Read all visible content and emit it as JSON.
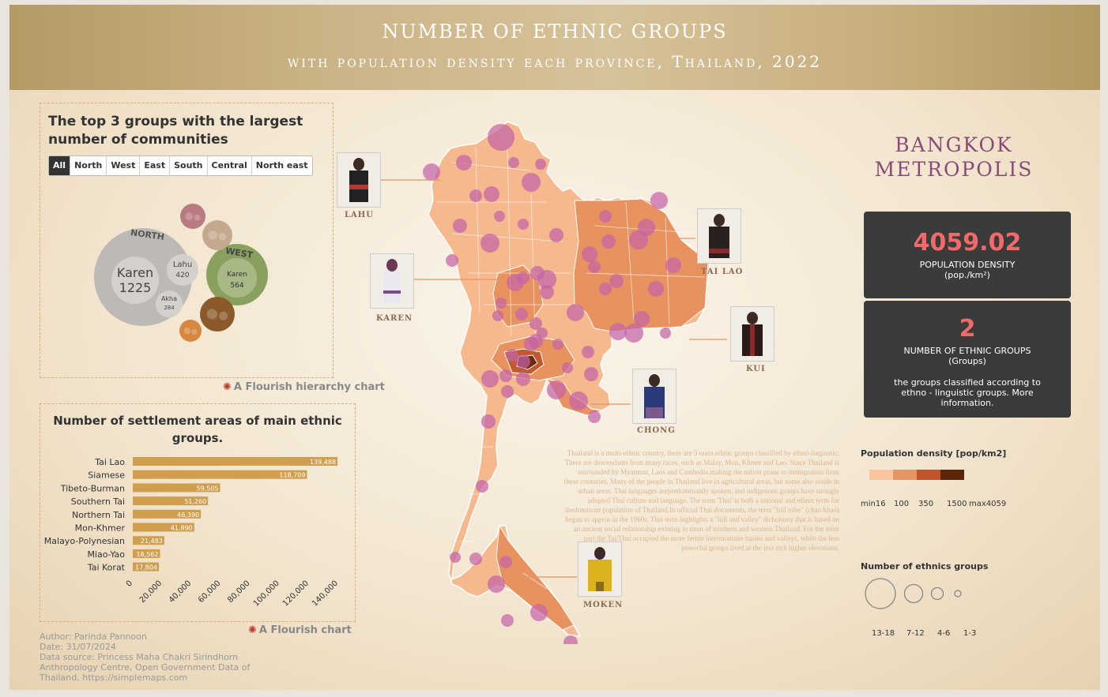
{
  "header": {
    "title": "NUMBER OF ETHNIC GROUPS",
    "subtitle": "with population density each province, Thailand, 2022"
  },
  "hierarchy_panel": {
    "title": "The top 3 groups with the largest number of communities",
    "tabs": [
      "All",
      "North",
      "West",
      "East",
      "South",
      "Central",
      "North east"
    ],
    "active_tab": "All",
    "credit": "A Flourish hierarchy chart"
  },
  "chart_data": [
    {
      "type": "bubble-hierarchy",
      "groups": [
        {
          "name": "NORTH",
          "color": "#bdb9b4",
          "children": [
            {
              "name": "Karen",
              "value": 1225
            },
            {
              "name": "Lahu",
              "value": 420
            },
            {
              "name": "Akha",
              "value": 284
            }
          ]
        },
        {
          "name": "WEST",
          "color": "#8aa05e",
          "children": [
            {
              "name": "Karen",
              "value": 564
            }
          ]
        },
        {
          "name": "",
          "color": "#b97b82",
          "children": []
        },
        {
          "name": "",
          "color": "#c5a98e",
          "children": []
        },
        {
          "name": "",
          "color": "#8b5a2b",
          "children": []
        },
        {
          "name": "",
          "color": "#d6883f",
          "children": []
        }
      ]
    },
    {
      "type": "bar",
      "orientation": "horizontal",
      "title": "Number of settlement areas of main ethnic groups.",
      "categories": [
        "Tai Lao",
        "Siamese",
        "Tibeto-Burman",
        "Southern Tai",
        "Northern Tai",
        "Mon-Khmer",
        "Malayo-Polynesian",
        "Miao-Yao",
        "Tai Korat"
      ],
      "values": [
        139488,
        118709,
        59505,
        51260,
        46390,
        41890,
        21483,
        18562,
        17804
      ],
      "value_labels": [
        "139,488",
        "118,709",
        "59,505",
        "51,260",
        "46,390",
        "41,890",
        "21,483",
        "18,562",
        "17,804"
      ],
      "xlim": [
        0,
        140000
      ],
      "xticks": [
        "0",
        "20,000",
        "40,000",
        "60,000",
        "80,000",
        "100,000",
        "120,000",
        "140,000"
      ],
      "bar_color": "#cf9f4f",
      "credit": "A Flourish chart"
    },
    {
      "type": "choropleth-bubble-map",
      "region": "Thailand provinces",
      "density_legend": {
        "title": "Population density [pop/km2]",
        "stops": [
          "min16",
          "100",
          "350",
          "1500",
          "max4059"
        ],
        "colors": [
          "#f9c4a0",
          "#e39563",
          "#c0542a",
          "#5c2408"
        ]
      },
      "ethnic_legend": {
        "title": "Number of ethnics groups",
        "classes": [
          "13-18",
          "7-12",
          "4-6",
          "1-3"
        ]
      }
    }
  ],
  "photos": [
    {
      "label": "LAHU"
    },
    {
      "label": "KAREN"
    },
    {
      "label": "TAI LAO"
    },
    {
      "label": "KUI"
    },
    {
      "label": "CHONG"
    },
    {
      "label": "MOKEN"
    }
  ],
  "description": "Thailand is a multi-ethnic country, there are 5 main ethnic groups classified by ethno-linguistic. There are descendants from many races, such as Malay, Mon, Khmer and Lao. Since Thailand is surrounded by Myanmar, Laos and Cambodia,making the nation prone to immigration from these countries. Many of the people in Thailand live in agricultural areas, but some also reside in urban areas. Thai languages arepredominantly spoken, and indigenous groups have strongly adopted Thai culture and language. The term 'Thai' is both a national and ethnic term for thedominant population of Thailand.In official Thai documents, the term \"hill tribe\" (chao khao) began to appear in the 1960s. This term highlights a \"hill and valley\" dichotomy that is based on an ancient social relationship existing in most of northern and western Thailand. For the most part the Tai/Thai occupied the more fertile intermontane basins and valleys, while the less powerful groups lived at the less rich higher elevations.",
  "province": {
    "name": "BANGKOK METROPOLIS",
    "density_value": "4059.02",
    "density_label": "POPULATION DENSITY",
    "density_unit": "(pop./km²)",
    "groups_value": "2",
    "groups_label": "NUMBER OF ETHNIC GROUPS",
    "groups_unit": "(Groups)",
    "groups_note": "the groups classified according to ethno - linguistic groups. More information."
  },
  "footer": {
    "author": "Author: Parinda Pannoon",
    "date": "Date: 31/07/2024",
    "source": "Data source: Princess Maha Chakri Sirindhorn Anthropology Centre, Open Government Data of Thailand, https://simplemaps.com"
  }
}
